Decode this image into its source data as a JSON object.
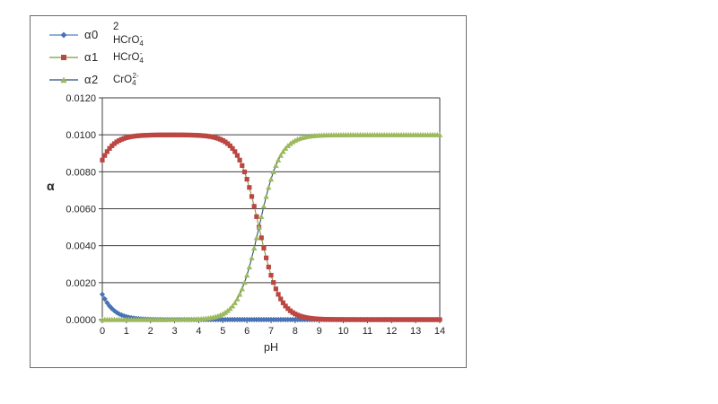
{
  "axis_titles": {
    "y": "α",
    "x": "pH"
  },
  "chart_data": {
    "type": "line",
    "title": "",
    "xlabel": "pH",
    "ylabel": "α",
    "x_range": [
      0,
      14
    ],
    "y_range": [
      0,
      0.012
    ],
    "x_tick_step": 1,
    "y_tick_step": 0.002,
    "x_ticks": [
      "0",
      "1",
      "2",
      "3",
      "4",
      "5",
      "6",
      "7",
      "8",
      "9",
      "10",
      "11",
      "12",
      "13",
      "14"
    ],
    "y_ticks": [
      "0.0000",
      "0.0020",
      "0.0040",
      "0.0060",
      "0.0080",
      "0.0100",
      "0.0120"
    ],
    "grid": "horizontal-only",
    "legend_position": "top-left-outside-plot",
    "model_note": "diprotic speciation curves, alpha*C with C total = 0.01, pKa1 = -0.8, pKa2 = 6.5, marker every 0.1 pH",
    "model": {
      "C": 0.01,
      "pKa1": -0.8,
      "pKa2": 6.5,
      "step": 0.1
    },
    "categories": [
      0,
      1,
      2,
      3,
      4,
      5,
      6,
      7,
      8,
      9,
      10,
      11,
      12,
      13,
      14
    ],
    "series": [
      {
        "name": "α0",
        "formula_parts": [
          {
            "t": "2 HCrO"
          },
          {
            "t": "4",
            "sub": true
          },
          {
            "t": "-",
            "sup": true
          }
        ],
        "marker": "diamond",
        "marker_color": "#4a72b4",
        "line_color": "#4f81bd",
        "values": [
          0.001368,
          0.0001558,
          1.58e-05,
          1.6e-06,
          2e-07,
          0,
          0,
          0,
          0,
          0,
          0,
          0,
          0,
          0,
          0
        ]
      },
      {
        "name": "α1",
        "formula_parts": [
          {
            "t": "HCrO"
          },
          {
            "t": "4",
            "sub": true
          },
          {
            "t": "-",
            "sup": true
          }
        ],
        "marker": "square",
        "marker_color": "#bc4642",
        "line_color": "#7f9a3d",
        "values": [
          0.008632,
          0.009844,
          0.0099684,
          0.0099948,
          0.0099683,
          0.0096934,
          0.0075977,
          0.0024027,
          0.0003066,
          3.15e-05,
          3.2e-06,
          3e-07,
          0,
          0,
          0
        ]
      },
      {
        "name": "α2",
        "formula_parts": [
          {
            "t": "CrO"
          },
          {
            "t": "4",
            "sub": true
          },
          {
            "t": "2-",
            "sup": true
          }
        ],
        "marker": "triangle",
        "marker_color": "#9cba5d",
        "line_color": "#2e4d7b",
        "values": [
          0,
          0,
          3e-07,
          3.2e-06,
          3.15e-05,
          0.0003065,
          0.0024023,
          0.0075973,
          0.0096925,
          0.0099685,
          0.0099968,
          0.0099997,
          0.01,
          0.01,
          0.01
        ]
      }
    ],
    "style": {
      "grid_color": "#3f3f3f",
      "axis_color": "#3f3f3f",
      "plot_border_color": "#3f3f3f",
      "frame_border_color": "#6d6d6d",
      "text_color": "#262626",
      "background": "#ffffff"
    }
  }
}
